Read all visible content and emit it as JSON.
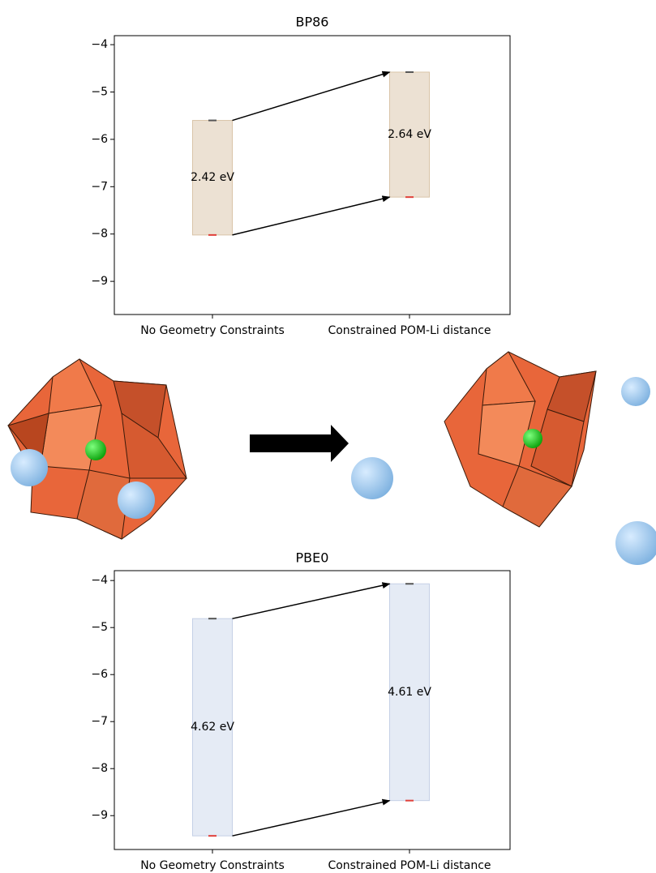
{
  "chart_data": [
    {
      "type": "floating_bar",
      "title": "BP86",
      "categories": [
        "No Geometry Constraints",
        "Constrained POM-Li distance"
      ],
      "high": [
        -5.6,
        -4.58
      ],
      "low": [
        -8.02,
        -7.22
      ],
      "value_labels": [
        "2.42 eV",
        "2.64 eV"
      ],
      "color": "#e9dccb",
      "edge_color": "#d9c4a8",
      "high_color": "#555555",
      "low_color": "#e0403a",
      "ylim": [
        -3.81,
        -9.7
      ],
      "yticks": [
        {
          "value": -4,
          "label": "−4"
        },
        {
          "value": -5,
          "label": "−5"
        },
        {
          "value": -6,
          "label": "−6"
        },
        {
          "value": -7,
          "label": "−7"
        },
        {
          "value": -8,
          "label": "−8"
        },
        {
          "value": -9,
          "label": "−9"
        }
      ]
    },
    {
      "type": "floating_bar",
      "title": "PBE0",
      "categories": [
        "No Geometry Constraints",
        "Constrained POM-Li distance"
      ],
      "high": [
        -4.81,
        -4.07
      ],
      "low": [
        -9.43,
        -8.68
      ],
      "value_labels": [
        "4.62 eV",
        "4.61 eV"
      ],
      "color": "#e1e7f3",
      "edge_color": "#c5d0e6",
      "high_color": "#555555",
      "low_color": "#e0403a",
      "ylim": [
        -3.79,
        -9.72
      ],
      "yticks": [
        {
          "value": -4,
          "label": "−4"
        },
        {
          "value": -5,
          "label": "−5"
        },
        {
          "value": -6,
          "label": "−6"
        },
        {
          "value": -7,
          "label": "−7"
        },
        {
          "value": -8,
          "label": "−8"
        },
        {
          "value": -9,
          "label": "−9"
        }
      ]
    }
  ]
}
